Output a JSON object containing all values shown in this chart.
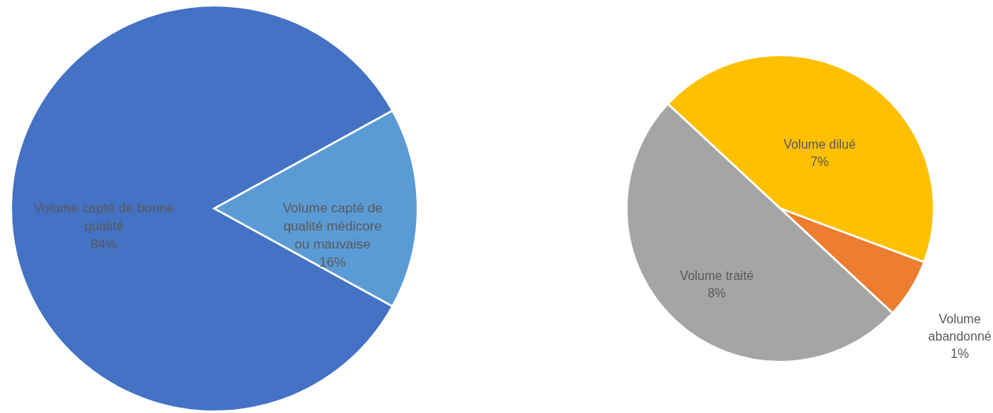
{
  "chart_data": [
    {
      "type": "pie",
      "categories": [
        "Volume capté de bonne qualité",
        "Volume capté de qualité médicore ou mauvaise"
      ],
      "values": [
        84,
        16
      ],
      "colors": [
        "#4472c4",
        "#5b9bd5"
      ],
      "value_labels": [
        "84%",
        "16%"
      ]
    },
    {
      "type": "pie",
      "categories": [
        "Volume dilué",
        "Volume abandonné",
        "Volume traité"
      ],
      "values": [
        7,
        1,
        8
      ],
      "colors": [
        "#ffc000",
        "#ed7d31",
        "#a5a5a5"
      ],
      "value_labels": [
        "7%",
        "1%",
        "8%"
      ]
    }
  ]
}
